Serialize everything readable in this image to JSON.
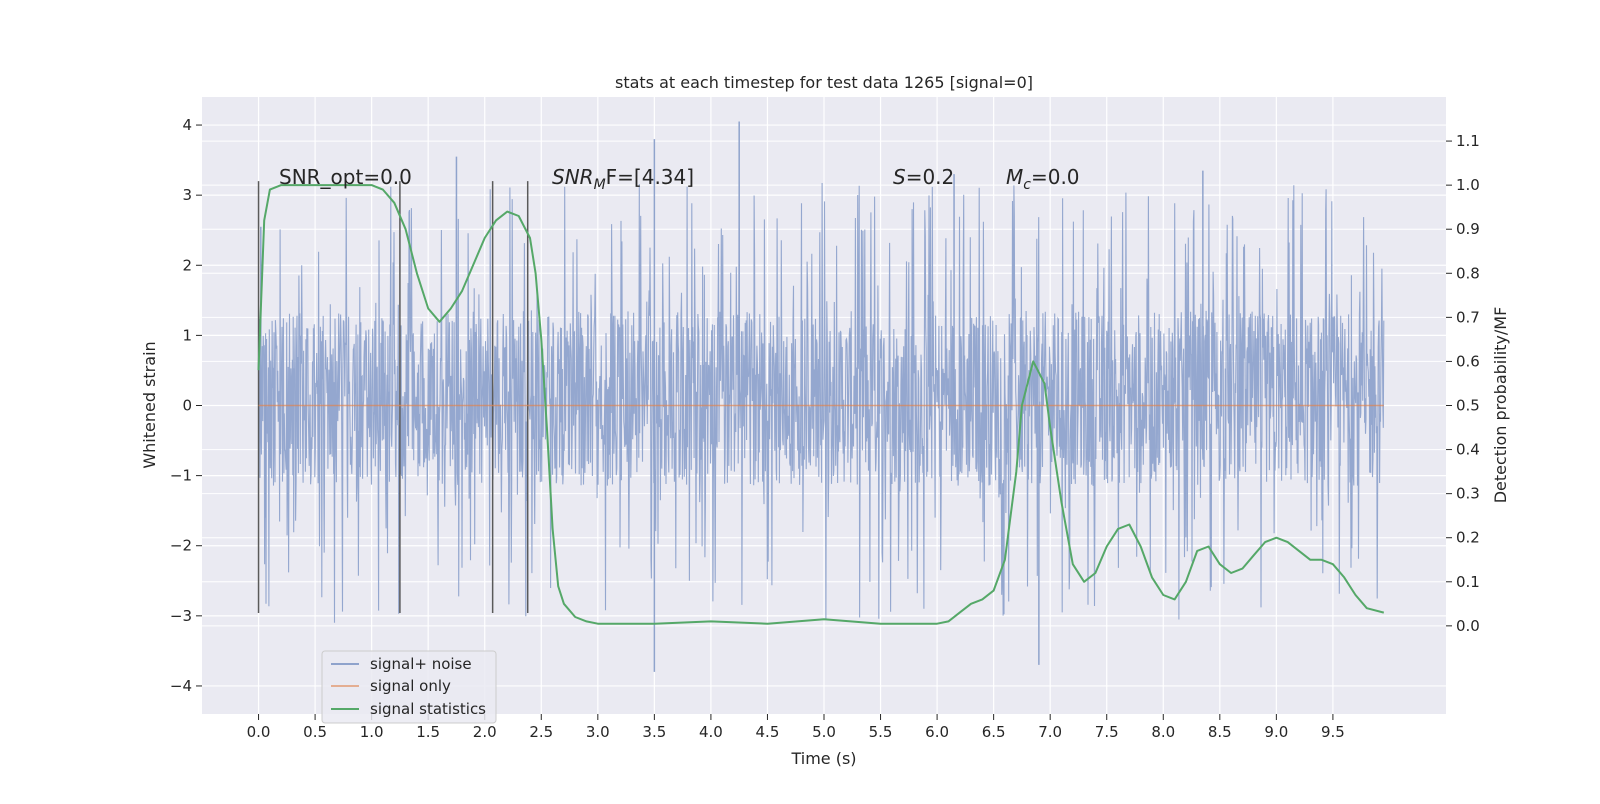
{
  "chart_data": {
    "type": "line",
    "title": "stats at each timestep for test data 1265 [signal=0]",
    "xlabel": "Time (s)",
    "ylabel_left": "Whitened strain",
    "ylabel_right": "Detection probability/MF",
    "xlim": [
      -0.5,
      10.5
    ],
    "ylim_left": [
      -4.4,
      4.4
    ],
    "ylim_right": [
      -0.2,
      1.2
    ],
    "x_ticks": [
      "0.0",
      "0.5",
      "1.0",
      "1.5",
      "2.0",
      "2.5",
      "3.0",
      "3.5",
      "4.0",
      "4.5",
      "5.0",
      "5.5",
      "6.0",
      "6.5",
      "7.0",
      "7.5",
      "8.0",
      "8.5",
      "9.0",
      "9.5"
    ],
    "y_ticks_left": [
      "−4",
      "−3",
      "−2",
      "−1",
      "0",
      "1",
      "2",
      "3",
      "4"
    ],
    "y_ticks_right": [
      "0.0",
      "0.1",
      "0.2",
      "0.3",
      "0.4",
      "0.5",
      "0.6",
      "0.7",
      "0.8",
      "0.9",
      "1.0",
      "1.1"
    ],
    "grid": true,
    "legend_position": "lower-left",
    "annotations": {
      "snr_opt": "SNR_opt=0.0",
      "snr_mf_sym": "SNR",
      "snr_mf_sub": "M",
      "snr_mf_rest": "F=[4.34]",
      "s_sym": "S",
      "s_rest": "=0.2",
      "mc_sym": "M",
      "mc_sub": "c",
      "mc_rest": "=0.0"
    },
    "vertical_markers_x": [
      0.0,
      1.25,
      2.07,
      2.38
    ],
    "noise_band": {
      "x_start": 0.0,
      "x_end": 9.95,
      "dense_low": -1.15,
      "dense_high": 1.35,
      "max_peak": 4.05,
      "min_peak": -3.8
    },
    "series": [
      {
        "name": "signal+ noise",
        "color": "#8fa3cc",
        "axis": "left",
        "description_points": [
          [
            0.0,
            -0.7
          ],
          [
            0.02,
            2.55
          ],
          [
            0.06,
            -1.6
          ],
          [
            0.1,
            2.6
          ],
          [
            0.5,
            2.55
          ],
          [
            1.0,
            2.5
          ],
          [
            1.5,
            2.55
          ],
          [
            2.0,
            -2.0
          ],
          [
            3.5,
            3.8
          ],
          [
            3.5,
            -3.8
          ],
          [
            4.25,
            4.05
          ],
          [
            6.9,
            -3.7
          ],
          [
            9.95,
            -0.9
          ]
        ]
      },
      {
        "name": "signal only",
        "color": "#dd8452",
        "axis": "left",
        "x": [
          0.0,
          9.95
        ],
        "values": [
          0.0,
          0.0
        ]
      },
      {
        "name": "signal statistics",
        "color": "#55a868",
        "axis": "right",
        "x": [
          0.0,
          0.05,
          0.1,
          0.2,
          0.3,
          0.5,
          0.8,
          1.0,
          1.1,
          1.2,
          1.3,
          1.4,
          1.5,
          1.6,
          1.7,
          1.8,
          1.9,
          2.0,
          2.1,
          2.2,
          2.3,
          2.4,
          2.45,
          2.5,
          2.55,
          2.6,
          2.65,
          2.7,
          2.8,
          2.9,
          3.0,
          3.5,
          4.0,
          4.5,
          5.0,
          5.5,
          6.0,
          6.1,
          6.2,
          6.3,
          6.4,
          6.5,
          6.6,
          6.7,
          6.75,
          6.85,
          6.95,
          7.0,
          7.1,
          7.2,
          7.3,
          7.4,
          7.5,
          7.6,
          7.7,
          7.8,
          7.9,
          8.0,
          8.1,
          8.2,
          8.3,
          8.4,
          8.5,
          8.6,
          8.7,
          8.8,
          8.9,
          9.0,
          9.1,
          9.2,
          9.3,
          9.4,
          9.5,
          9.6,
          9.7,
          9.8,
          9.95
        ],
        "values": [
          0.58,
          0.92,
          0.99,
          1.0,
          1.0,
          1.0,
          1.0,
          1.0,
          0.99,
          0.96,
          0.9,
          0.8,
          0.72,
          0.69,
          0.72,
          0.76,
          0.82,
          0.88,
          0.92,
          0.94,
          0.93,
          0.88,
          0.8,
          0.65,
          0.45,
          0.22,
          0.09,
          0.05,
          0.02,
          0.01,
          0.005,
          0.005,
          0.01,
          0.005,
          0.015,
          0.005,
          0.005,
          0.01,
          0.03,
          0.05,
          0.06,
          0.08,
          0.15,
          0.35,
          0.5,
          0.6,
          0.55,
          0.45,
          0.28,
          0.14,
          0.1,
          0.12,
          0.18,
          0.22,
          0.23,
          0.18,
          0.11,
          0.07,
          0.06,
          0.1,
          0.17,
          0.18,
          0.14,
          0.12,
          0.13,
          0.16,
          0.19,
          0.2,
          0.19,
          0.17,
          0.15,
          0.15,
          0.14,
          0.11,
          0.07,
          0.04,
          0.03
        ]
      }
    ]
  }
}
